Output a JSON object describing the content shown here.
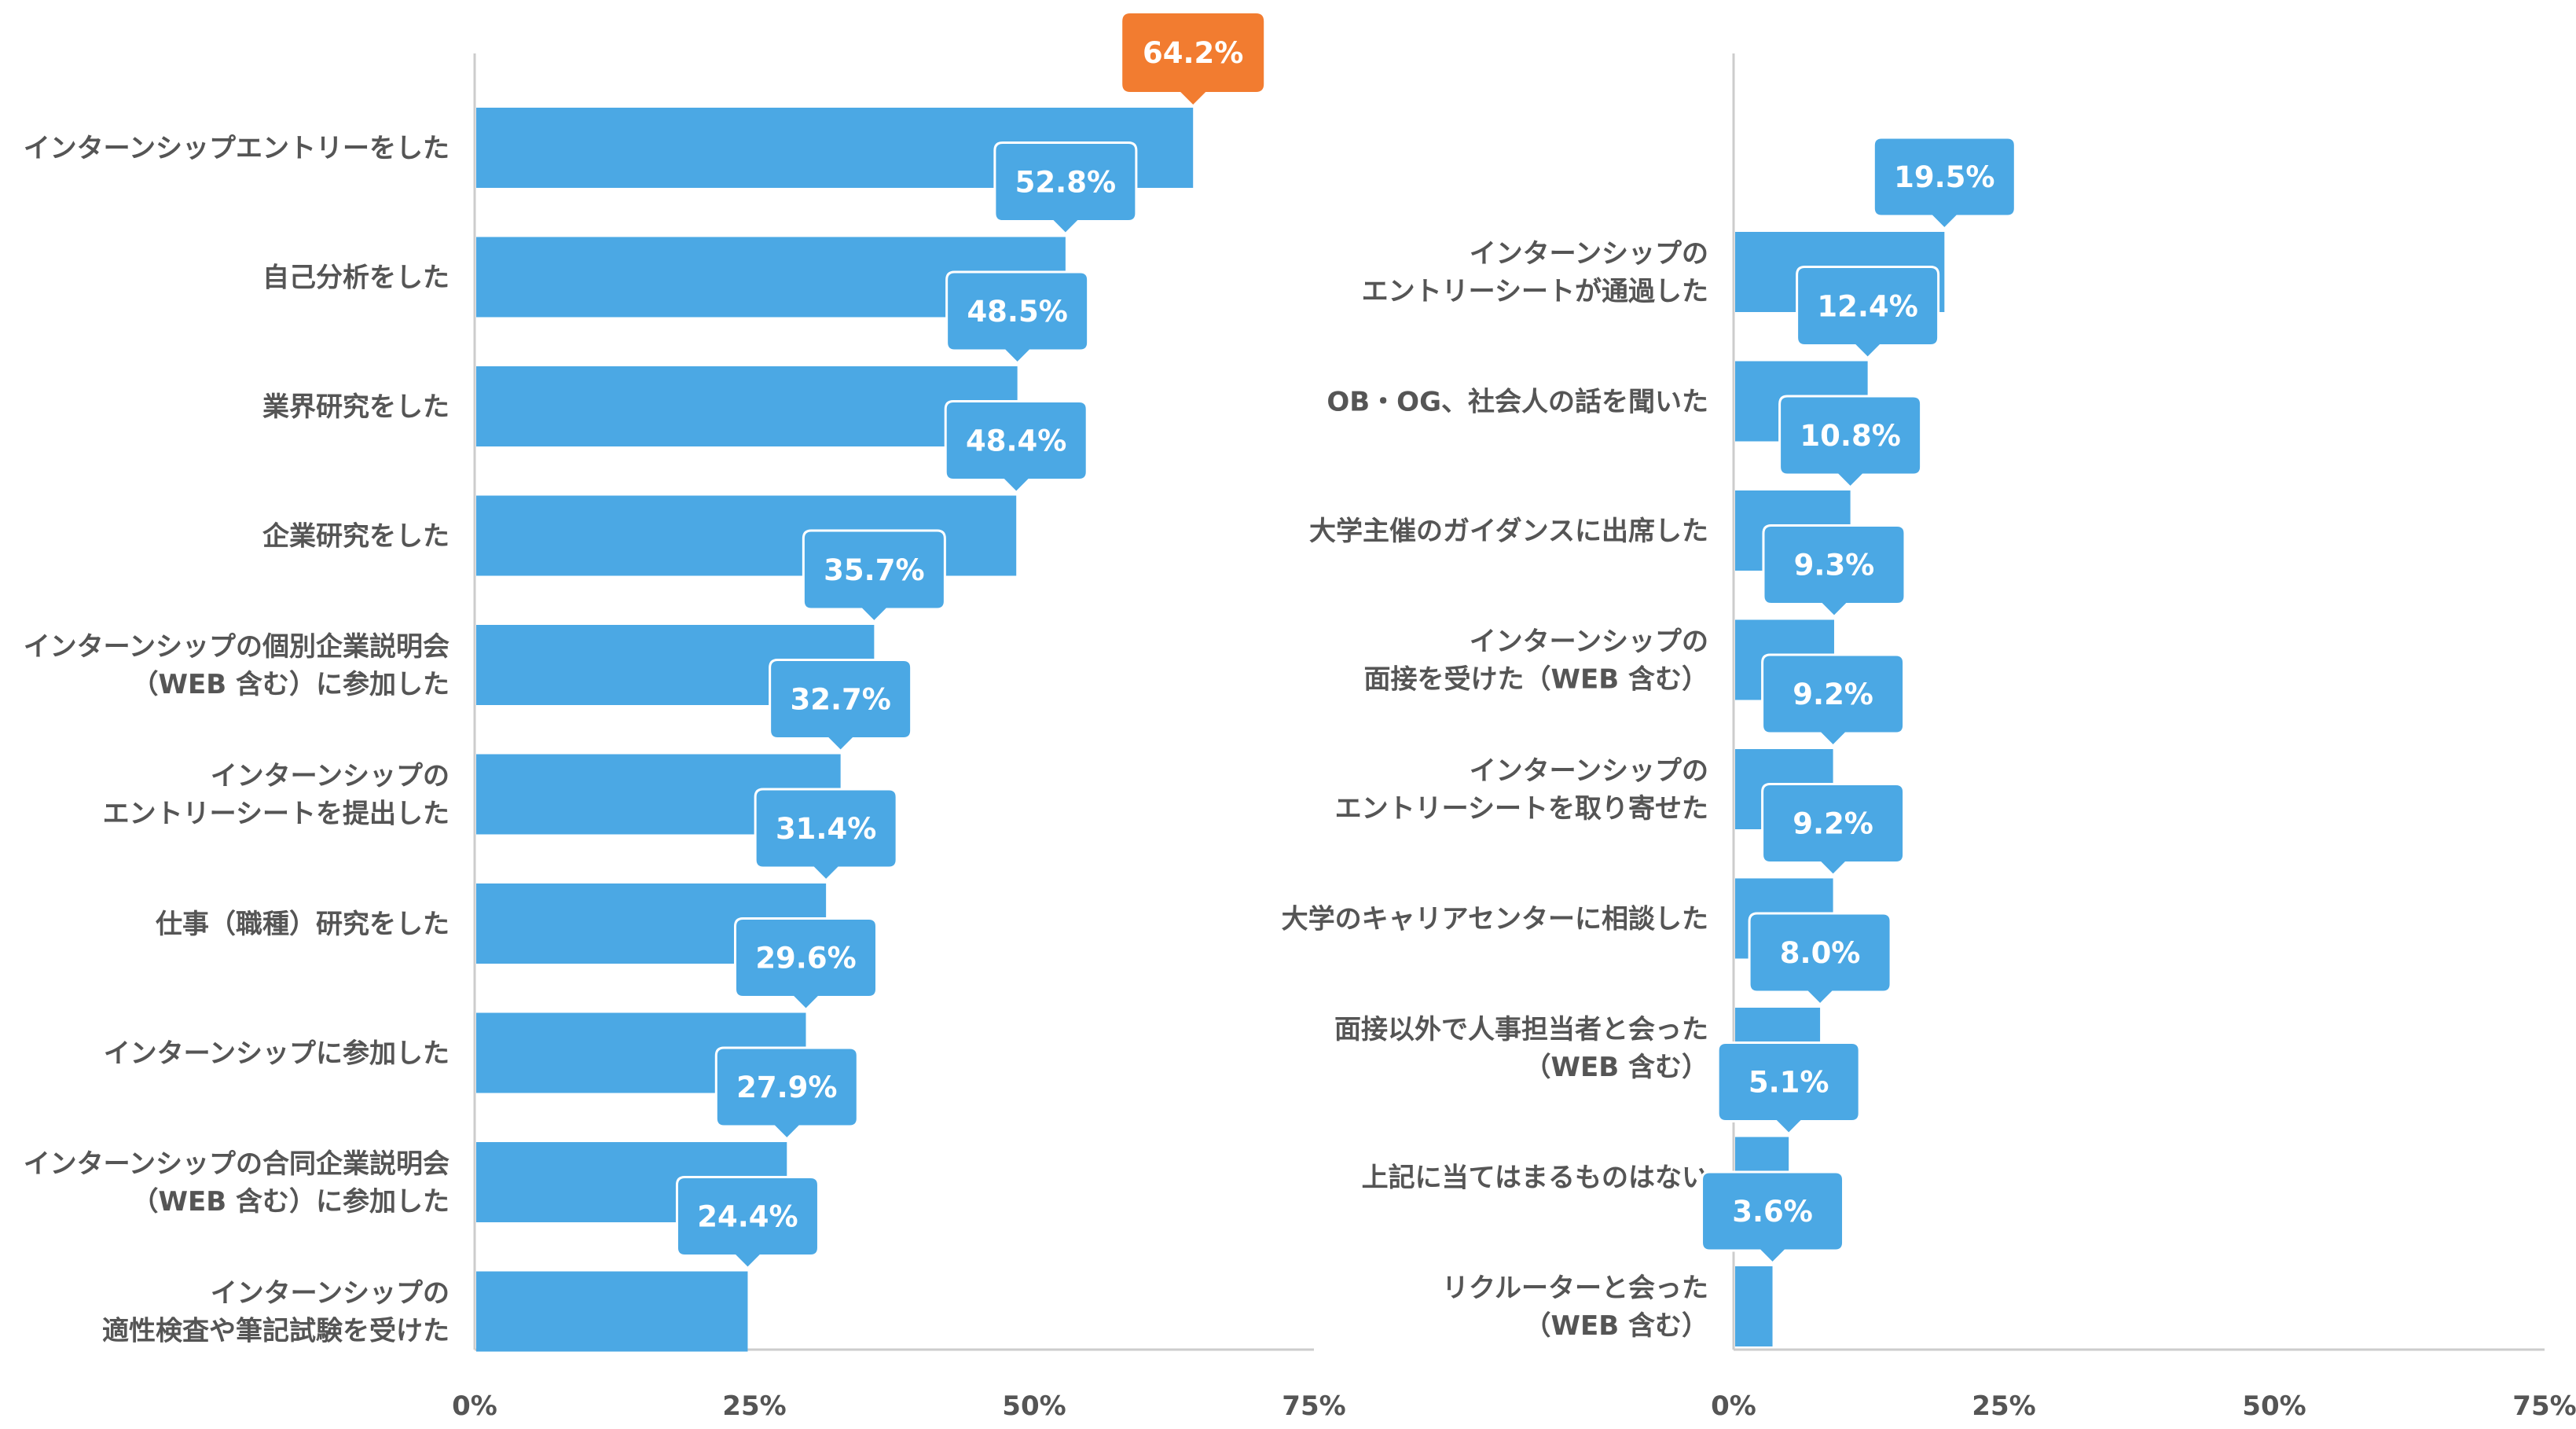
{
  "colors": {
    "bar": "#4ba8e4",
    "callout": "#4ba8e4",
    "highlight": "#f27c30",
    "label": "#555555",
    "axis": "#cccccc",
    "callout_text": "#ffffff"
  },
  "chart_data": [
    {
      "type": "bar",
      "orientation": "horizontal",
      "unit": "%",
      "xlim": [
        0,
        75
      ],
      "ticks": [
        "0%",
        "25%",
        "50%",
        "75%"
      ],
      "categories": [
        "インターンシップエントリーをした",
        "自己分析をした",
        "業界研究をした",
        "企業研究をした",
        "インターンシップの個別企業説明会\n（WEB 含む）に参加した",
        "インターンシップの\nエントリーシートを提出した",
        "仕事（職種）研究をした",
        "インターンシップに参加した",
        "インターンシップの合同企業説明会\n（WEB 含む）に参加した",
        "インターンシップの\n適性検査や筆記試験を受けた"
      ],
      "values": [
        64.2,
        52.8,
        48.5,
        48.4,
        35.7,
        32.7,
        31.4,
        29.6,
        27.9,
        24.4
      ],
      "value_labels": [
        "64.2%",
        "52.8%",
        "48.5%",
        "48.4%",
        "35.7%",
        "32.7%",
        "31.4%",
        "29.6%",
        "27.9%",
        "24.4%"
      ],
      "highlight_index": 0
    },
    {
      "type": "bar",
      "orientation": "horizontal",
      "unit": "%",
      "xlim": [
        0,
        75
      ],
      "ticks": [
        "0%",
        "25%",
        "50%",
        "75%"
      ],
      "categories": [
        "インターンシップの\nエントリーシートが通過した",
        "OB・OG、社会人の話を聞いた",
        "大学主催のガイダンスに出席した",
        "インターンシップの\n面接を受けた（WEB 含む）",
        "インターンシップの\nエントリーシートを取り寄せた",
        "大学のキャリアセンターに相談した",
        "面接以外で人事担当者と会った\n（WEB 含む）",
        "上記に当てはまるものはない",
        "リクルーターと会った\n（WEB 含む）"
      ],
      "values": [
        19.5,
        12.4,
        10.8,
        9.3,
        9.2,
        9.2,
        8.0,
        5.1,
        3.6
      ],
      "value_labels": [
        "19.5%",
        "12.4%",
        "10.8%",
        "9.3%",
        "9.2%",
        "9.2%",
        "8.0%",
        "5.1%",
        "3.6%"
      ],
      "highlight_index": -1
    }
  ]
}
